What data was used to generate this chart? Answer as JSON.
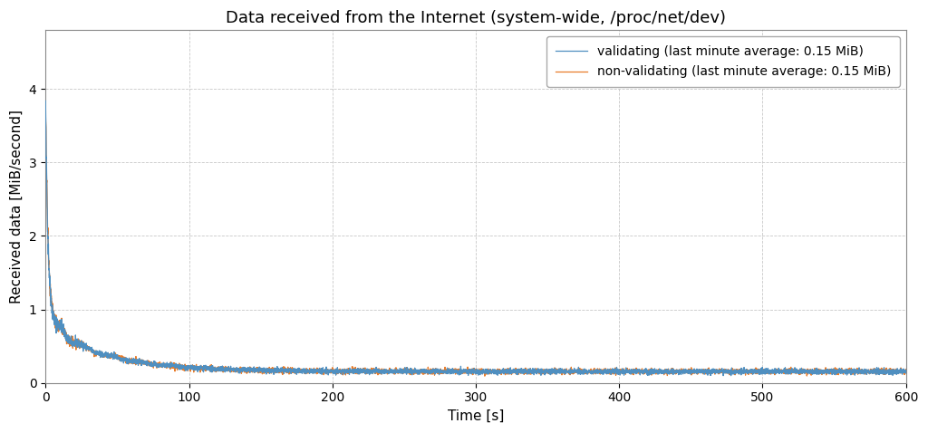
{
  "title": "Data received from the Internet (system-wide, /proc/net/dev)",
  "xlabel": "Time [s]",
  "ylabel": "Received data [MiB/second]",
  "xlim": [
    0,
    600
  ],
  "ylim": [
    0,
    4.8
  ],
  "yticks": [
    0,
    1,
    2,
    3,
    4
  ],
  "xticks": [
    0,
    100,
    200,
    300,
    400,
    500,
    600
  ],
  "color_validating": "#4f8fc0",
  "color_nonvalidating": "#e87c2a",
  "legend_validating": "validating (last minute average: 0.15 MiB)",
  "legend_nonvalidating": "non-validating (last minute average: 0.15 MiB)",
  "grid_color": "#c8c8c8",
  "background_color": "#ffffff",
  "title_fontsize": 13,
  "label_fontsize": 11,
  "tick_fontsize": 10,
  "legend_fontsize": 10,
  "line_width": 0.9,
  "seed": 42,
  "n_points": 6000,
  "peak_value": 3.8,
  "fast_decay_rate": 0.55,
  "slow_decay_rate": 0.025,
  "asymptote": 0.155,
  "transition_time": 10,
  "noise_base": 0.018,
  "noise_early_extra": 0.06,
  "noise_early_decay": 0.08
}
